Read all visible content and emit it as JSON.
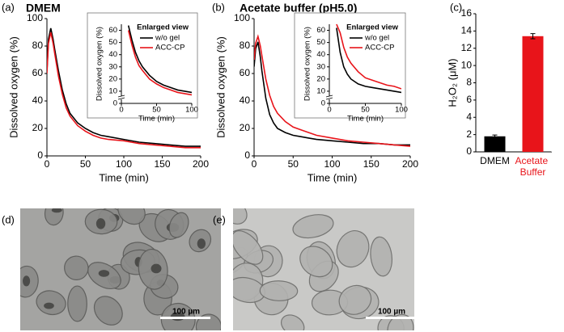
{
  "chart_data": [
    {
      "type": "line",
      "panel": "(a)",
      "title": "DMEM",
      "x_label": "Time (min)",
      "y_label": "Dissolved oxygen (%)",
      "x": [
        0,
        2,
        5,
        8,
        10,
        15,
        20,
        25,
        30,
        40,
        50,
        60,
        70,
        80,
        100,
        120,
        140,
        160,
        180,
        200
      ],
      "series": [
        {
          "color": "#000000",
          "values": [
            62,
            85,
            93,
            85,
            78,
            62,
            48,
            38,
            31,
            24,
            20,
            17,
            15,
            14,
            12,
            10,
            9,
            8,
            7,
            7
          ]
        },
        {
          "color": "#e8141a",
          "values": [
            60,
            82,
            90,
            82,
            75,
            58,
            45,
            35,
            29,
            22,
            18,
            15,
            13,
            12,
            11,
            9,
            8,
            7,
            6,
            6
          ]
        }
      ],
      "xlim": [
        0,
        200
      ],
      "xticks": [
        0,
        50,
        100,
        150,
        200
      ],
      "ylim": [
        0,
        100
      ],
      "yticks": [
        0,
        20,
        40,
        60,
        80,
        100
      ]
    },
    {
      "type": "line",
      "title": "Enlarged view",
      "x_label": "Time (min)",
      "y_label": "Dissolved oxygen (%)",
      "x": [
        10,
        15,
        20,
        25,
        30,
        40,
        50,
        60,
        70,
        80,
        90,
        100
      ],
      "series": [
        {
          "name": "w/o gel",
          "color": "#000000",
          "values": [
            64,
            52,
            42,
            35,
            30,
            23,
            18,
            15,
            13,
            11,
            10,
            9
          ]
        },
        {
          "name": "ACC-CP",
          "color": "#e8141a",
          "values": [
            60,
            48,
            38,
            31,
            27,
            20,
            16,
            13,
            11,
            9,
            8,
            7
          ]
        }
      ],
      "xlim": [
        0,
        100
      ],
      "xticks": [
        0,
        50,
        100
      ],
      "ylim": [
        0,
        65
      ],
      "yticks": [
        0,
        10,
        20,
        30,
        40,
        50,
        60
      ]
    },
    {
      "type": "line",
      "panel": "(b)",
      "title": "Acetate buffer (pH5.0)",
      "x_label": "Time (min)",
      "y_label": "Dissolved oxygen (%)",
      "x": [
        0,
        2,
        5,
        8,
        10,
        15,
        20,
        25,
        30,
        40,
        50,
        60,
        70,
        80,
        100,
        120,
        140,
        160,
        180,
        200
      ],
      "series": [
        {
          "color": "#000000",
          "values": [
            65,
            78,
            83,
            72,
            62,
            42,
            30,
            24,
            20,
            17,
            15,
            14,
            13,
            12,
            11,
            10,
            9,
            9,
            8,
            8
          ]
        },
        {
          "color": "#e8141a",
          "values": [
            70,
            82,
            87,
            80,
            73,
            56,
            44,
            36,
            31,
            25,
            21,
            19,
            17,
            15,
            13,
            11,
            10,
            9,
            8,
            7
          ]
        }
      ],
      "xlim": [
        0,
        200
      ],
      "xticks": [
        0,
        50,
        100,
        150,
        200
      ],
      "ylim": [
        0,
        100
      ],
      "yticks": [
        0,
        20,
        40,
        60,
        80,
        100
      ]
    },
    {
      "type": "line",
      "title": "Enlarged view",
      "x_label": "Time (min)",
      "y_label": "Dissolved oxygen (%)",
      "x": [
        10,
        15,
        20,
        25,
        30,
        40,
        50,
        60,
        70,
        80,
        90,
        100
      ],
      "series": [
        {
          "name": "w/o gel",
          "color": "#000000",
          "values": [
            62,
            42,
            30,
            24,
            20,
            16,
            14,
            13,
            12,
            11,
            10,
            9
          ]
        },
        {
          "name": "ACC-CP",
          "color": "#e8141a",
          "values": [
            65,
            58,
            46,
            38,
            33,
            26,
            21,
            19,
            17,
            15,
            14,
            12
          ]
        }
      ],
      "xlim": [
        0,
        100
      ],
      "xticks": [
        0,
        50,
        100
      ],
      "ylim": [
        0,
        65
      ],
      "yticks": [
        0,
        10,
        20,
        30,
        40,
        50,
        60
      ]
    },
    {
      "type": "bar",
      "panel": "(c)",
      "y_label": "H₂O₂ (μM)",
      "categories": [
        "DMEM",
        "Acetate Buffer"
      ],
      "values": [
        1.8,
        13.4
      ],
      "errors": [
        0.15,
        0.3
      ],
      "colors": [
        "#000000",
        "#e8141a"
      ],
      "ylim": [
        0,
        16
      ],
      "yticks": [
        0,
        2,
        4,
        6,
        8,
        10,
        12,
        14,
        16
      ]
    }
  ],
  "images": [
    {
      "panel": "(d)",
      "scale_bar": "100 µm"
    },
    {
      "panel": "(e)",
      "scale_bar": "100 µm"
    }
  ]
}
